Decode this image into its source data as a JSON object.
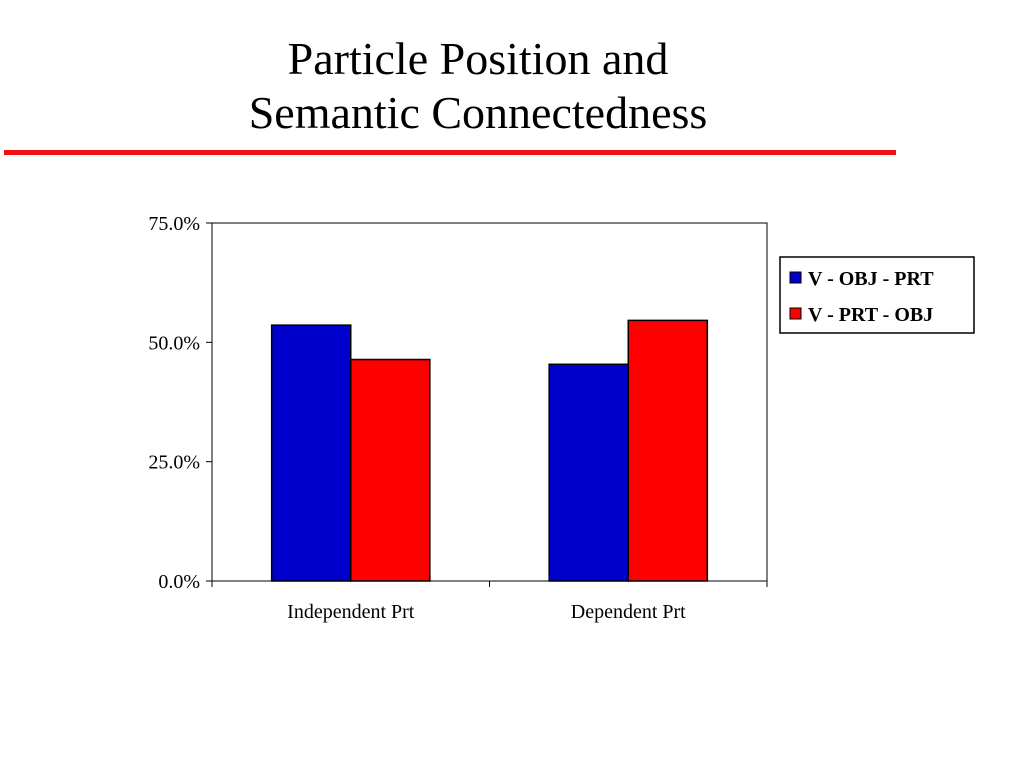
{
  "slide": {
    "title_line1": "Particle Position and",
    "title_line2": "Semantic Connectedness",
    "rule_color": "#ee1111"
  },
  "chart_data": {
    "type": "bar",
    "title": "",
    "xlabel": "",
    "ylabel": "",
    "categories": [
      "Independent Prt",
      "Dependent Prt"
    ],
    "series": [
      {
        "name": "V - OBJ - PRT",
        "color": "#0000cc",
        "values": [
          53.6,
          45.4
        ]
      },
      {
        "name": "V - PRT - OBJ",
        "color": "#ff0000",
        "values": [
          46.4,
          54.6
        ]
      }
    ],
    "ylim": [
      0,
      75
    ],
    "yticks": [
      0,
      25,
      50,
      75
    ],
    "ytick_labels": [
      "0.0%",
      "25.0%",
      "50.0%",
      "75.0%"
    ],
    "legend_position": "right",
    "grid": false
  }
}
